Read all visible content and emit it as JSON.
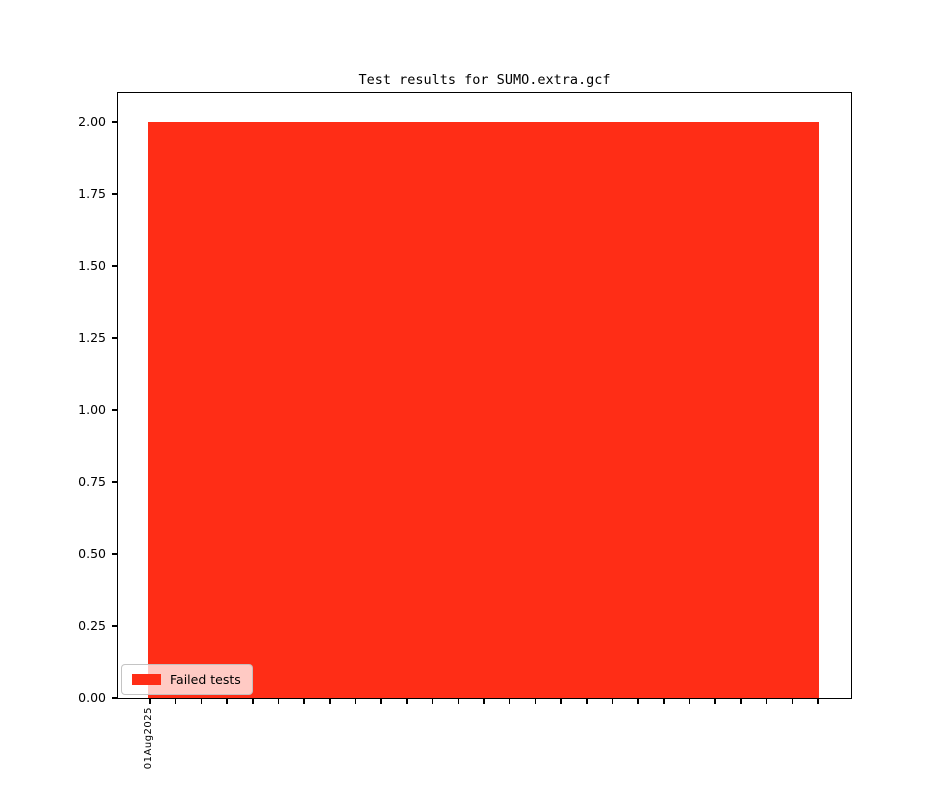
{
  "chart_data": {
    "type": "bar",
    "title": "Test results for SUMO.extra.gcf",
    "xlabel": "",
    "ylabel": "",
    "categories": [
      "01Aug2025"
    ],
    "values": [
      2
    ],
    "series": [
      {
        "name": "Failed tests",
        "color": "#ff2d16",
        "values": [
          2
        ]
      }
    ],
    "bar_color": "#ff2d16",
    "ylim": [
      0,
      2.1
    ],
    "y_ticks": [
      "0.00",
      "0.25",
      "0.50",
      "0.75",
      "1.00",
      "1.25",
      "1.50",
      "1.75",
      "2.00"
    ],
    "x_tick_count": 27,
    "x_tick_labels": [
      "01Aug2025"
    ],
    "legend": {
      "position": "lower-left",
      "entries": [
        {
          "label": "Failed tests",
          "color": "#ff2d16"
        }
      ]
    },
    "grid": "off",
    "background_color": "#ffffff",
    "axis_color": "#000000"
  }
}
